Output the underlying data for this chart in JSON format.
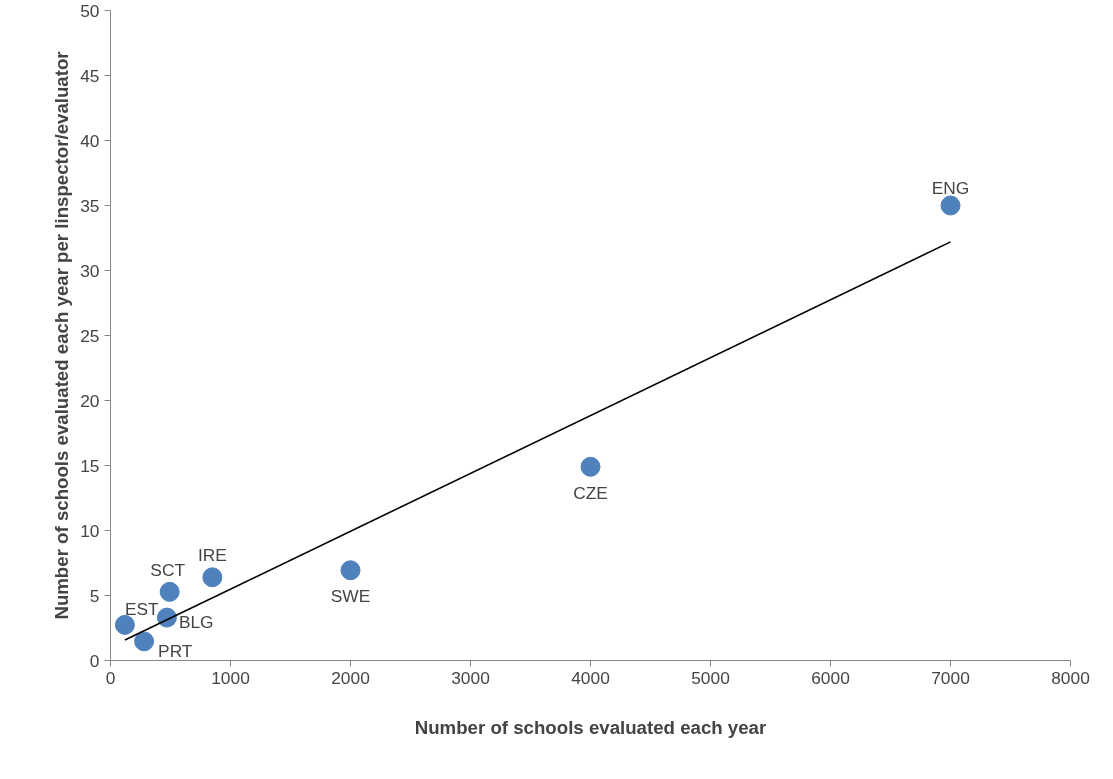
{
  "chart_data": {
    "type": "scatter",
    "xlabel": "Number of schools evaluated each year",
    "ylabel": "Number of schools evaluated each year per linspector/evaluator",
    "xlim": [
      0,
      8000
    ],
    "xticks": [
      0,
      1000,
      2000,
      3000,
      4000,
      5000,
      6000,
      7000,
      8000
    ],
    "ylim": [
      0,
      50
    ],
    "yticks": [
      0,
      5,
      10,
      15,
      20,
      25,
      30,
      35,
      40,
      45,
      50
    ],
    "grid": false,
    "series": [
      {
        "marker": "circle",
        "color": "#4f81bd",
        "x": [
          120,
          280,
          470,
          493,
          849,
          2000,
          4000,
          7000
        ],
        "values": [
          2.74,
          1.47,
          3.3,
          5.28,
          6.4,
          6.94,
          14.9,
          35
        ]
      },
      {
        "type": "line",
        "color": "#000000",
        "x": [
          120,
          7000
        ],
        "values": [
          1.57,
          32.2
        ]
      }
    ],
    "annotations": [
      {
        "text": "EST",
        "x": 120,
        "y": 2.74
      },
      {
        "text": "PRT",
        "x": 280,
        "y": 1.47
      },
      {
        "text": "BLG",
        "x": 470,
        "y": 3.3
      },
      {
        "text": "SCT",
        "x": 493,
        "y": 5.28
      },
      {
        "text": "IRE",
        "x": 849,
        "y": 6.4
      },
      {
        "text": "SWE",
        "x": 2000,
        "y": 6.94
      },
      {
        "text": "CZE",
        "x": 4000,
        "y": 14.9
      },
      {
        "text": "ENG",
        "x": 7000,
        "y": 35
      }
    ]
  }
}
